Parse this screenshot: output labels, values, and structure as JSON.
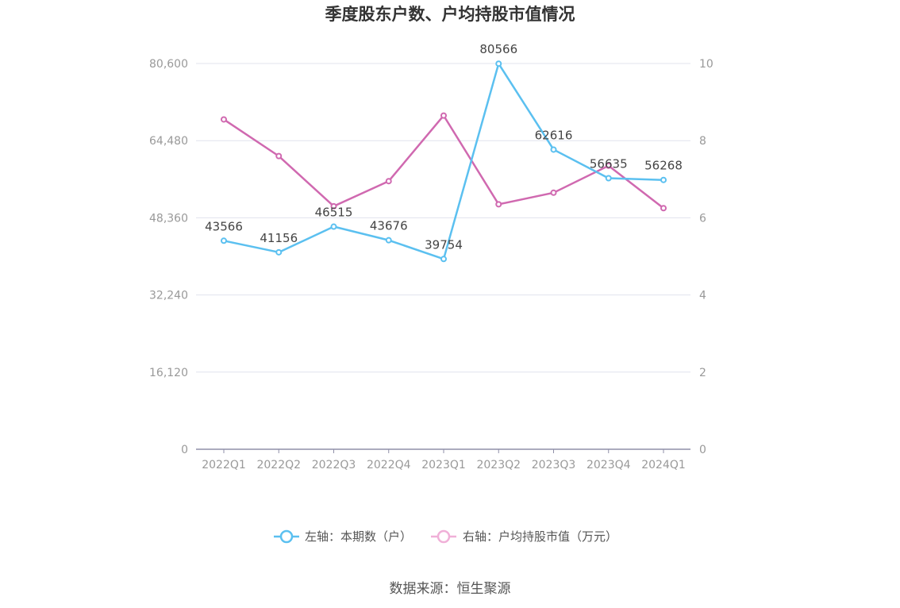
{
  "chart_data": {
    "type": "line",
    "title": "季度股东户数、户均持股市值情况",
    "categories": [
      "2022Q1",
      "2022Q2",
      "2022Q3",
      "2022Q4",
      "2023Q1",
      "2023Q2",
      "2023Q3",
      "2023Q4",
      "2024Q1"
    ],
    "series": [
      {
        "name": "左轴：本期数（户）",
        "axis": "left",
        "color": "#5bc0f0",
        "values": [
          43566,
          41156,
          46515,
          43676,
          39754,
          80566,
          62616,
          56635,
          56268
        ],
        "data_labels": [
          "43566",
          "41156",
          "46515",
          "43676",
          "39754",
          "80566",
          "62616",
          "56635",
          "56268"
        ]
      },
      {
        "name": "右轴：户均持股市值（万元）",
        "axis": "right",
        "color": "#d069b0",
        "legend_color": "#f0b0d8",
        "values": [
          8.55,
          7.6,
          6.3,
          6.95,
          8.65,
          6.35,
          6.65,
          7.35,
          6.25
        ]
      }
    ],
    "y_left": {
      "range": [
        0,
        80600
      ],
      "ticks": [
        "0",
        "16,120",
        "32,240",
        "48,360",
        "64,480",
        "80,600"
      ]
    },
    "y_right": {
      "range": [
        0,
        10
      ],
      "ticks": [
        "0",
        "2",
        "4",
        "6",
        "8",
        "10"
      ]
    },
    "grid": true,
    "legend_position": "bottom"
  },
  "source_text": "数据来源：恒生聚源"
}
